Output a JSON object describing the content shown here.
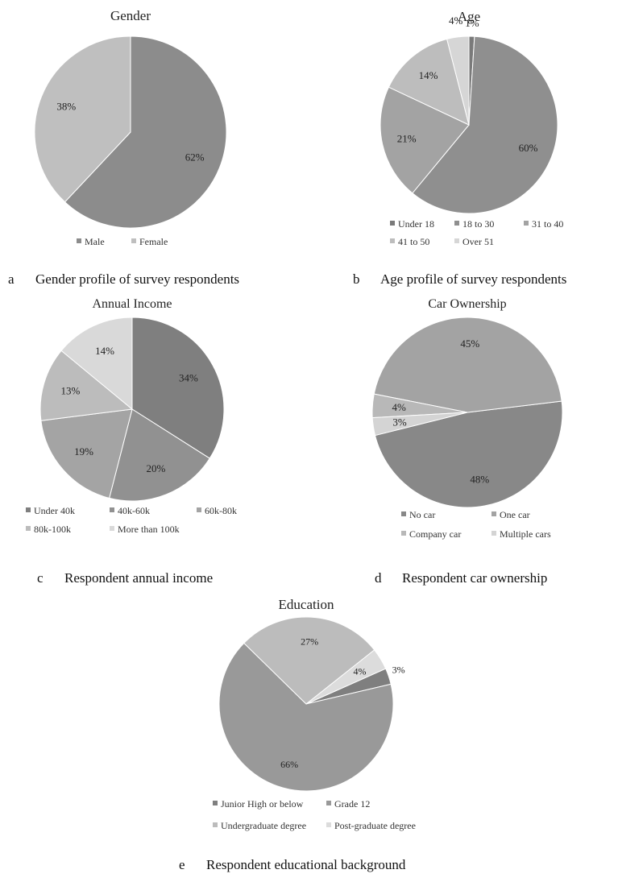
{
  "chart_data": [
    {
      "type": "pie",
      "title": "Gender",
      "caption_letter": "a",
      "caption": "Gender profile of survey respondents",
      "slices": [
        {
          "label": "Male",
          "value": 62,
          "display": "62%",
          "color": "#8c8c8c"
        },
        {
          "label": "Female",
          "value": 38,
          "display": "38%",
          "color": "#bfbfbf"
        }
      ],
      "legend": [
        "Male",
        "Female"
      ],
      "legend_position": "bottom"
    },
    {
      "type": "pie",
      "title": "Age",
      "caption_letter": "b",
      "caption": "Age profile of survey respondents",
      "slices": [
        {
          "label": "Under 18",
          "value": 1,
          "display": "1%",
          "color": "#7a7a7a"
        },
        {
          "label": "18 to 30",
          "value": 60,
          "display": "60%",
          "color": "#8f8f8f"
        },
        {
          "label": "31 to 40",
          "value": 21,
          "display": "21%",
          "color": "#a3a3a3"
        },
        {
          "label": "41 to 50",
          "value": 14,
          "display": "14%",
          "color": "#bdbdbd"
        },
        {
          "label": "Over 51",
          "value": 4,
          "display": "4%",
          "color": "#d6d6d6"
        }
      ],
      "legend": [
        "Under 18",
        "18 to 30",
        "31 to 40",
        "41 to 50",
        "Over 51"
      ],
      "legend_position": "bottom"
    },
    {
      "type": "pie",
      "title": "Annual Income",
      "caption_letter": "c",
      "caption": "Respondent annual income",
      "slices": [
        {
          "label": "Under 40k",
          "value": 34,
          "display": "34%",
          "color": "#7f7f7f"
        },
        {
          "label": "40k-60k",
          "value": 20,
          "display": "20%",
          "color": "#919191"
        },
        {
          "label": "60k-80k",
          "value": 19,
          "display": "19%",
          "color": "#a4a4a4"
        },
        {
          "label": "80k-100k",
          "value": 13,
          "display": "13%",
          "color": "#bcbcbc"
        },
        {
          "label": "More than 100k",
          "value": 14,
          "display": "14%",
          "color": "#d9d9d9"
        }
      ],
      "legend": [
        "Under 40k",
        "40k-60k",
        "60k-80k",
        "80k-100k",
        "More than 100k"
      ],
      "legend_position": "bottom"
    },
    {
      "type": "pie",
      "title": "Car Ownership",
      "caption_letter": "d",
      "caption": "Respondent car ownership",
      "slices": [
        {
          "label": "No car",
          "value": 48,
          "display": "48%",
          "color": "#888888"
        },
        {
          "label": "One car",
          "value": 45,
          "display": "45%",
          "color": "#a3a3a3"
        },
        {
          "label": "Company car",
          "value": 4,
          "display": "4%",
          "color": "#b8b8b8"
        },
        {
          "label": "Multiple cars",
          "value": 3,
          "display": "3%",
          "color": "#d4d4d4"
        }
      ],
      "legend": [
        "No car",
        "One car",
        "Company car",
        "Multiple cars"
      ],
      "legend_position": "bottom"
    },
    {
      "type": "pie",
      "title": "Education",
      "caption_letter": "e",
      "caption": "Respondent educational background",
      "slices": [
        {
          "label": "Junior High or below",
          "value": 3,
          "display": "3%",
          "color": "#7f7f7f"
        },
        {
          "label": "Grade 12",
          "value": 66,
          "display": "66%",
          "color": "#999999"
        },
        {
          "label": "Undergraduate degree",
          "value": 27,
          "display": "27%",
          "color": "#bcbcbc"
        },
        {
          "label": "Post-graduate degree",
          "value": 4,
          "display": "4%",
          "color": "#dcdcdc"
        }
      ],
      "legend": [
        "Junior High or below",
        "Grade 12",
        "Undergraduate degree",
        "Post-graduate degree"
      ],
      "legend_position": "bottom"
    }
  ]
}
